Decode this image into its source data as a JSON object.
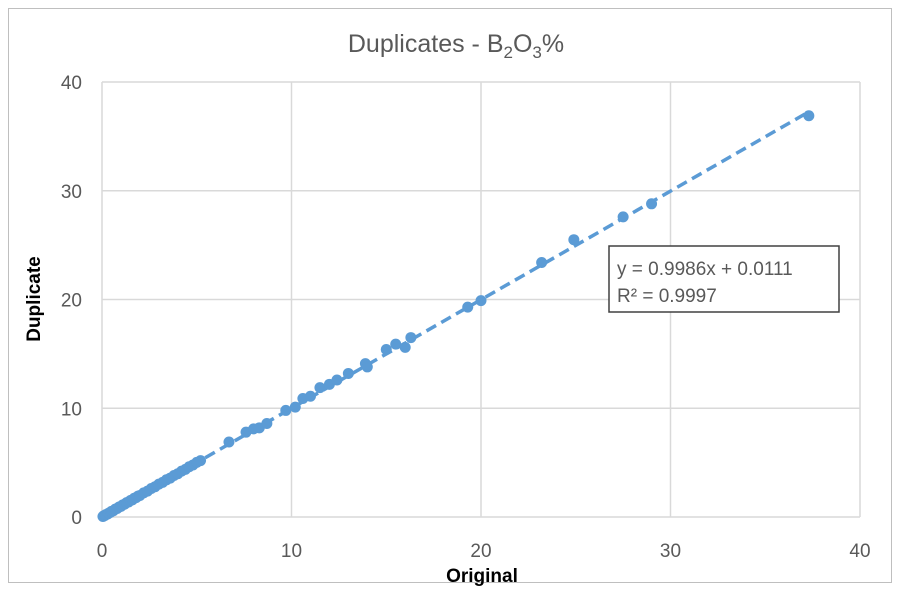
{
  "chart_data": {
    "type": "scatter",
    "title": "Duplicates - B2O3%",
    "title_parts": {
      "prefix": "Duplicates - B",
      "sub1": "2",
      "mid": "O",
      "sub2": "3",
      "suffix": "%"
    },
    "xlabel": "Original",
    "ylabel": "Duplicate",
    "xlim": [
      0,
      40
    ],
    "ylim": [
      0,
      40
    ],
    "xticks": [
      0,
      10,
      20,
      30,
      40
    ],
    "yticks": [
      0,
      10,
      20,
      30,
      40
    ],
    "x_tick_labels": [
      "0",
      "10",
      "20",
      "30",
      "40"
    ],
    "y_tick_labels": [
      "0",
      "10",
      "20",
      "30",
      "40"
    ],
    "grid": true,
    "marker_color": "#5b9bd5",
    "trendline": {
      "type": "linear",
      "slope": 0.9986,
      "intercept": 0.0111,
      "style": "dashed",
      "x_range": [
        0,
        37.3
      ],
      "equation_text": "y = 0.9986x + 0.0111",
      "r2_text": "R² = 0.9997"
    },
    "points": [
      [
        0.05,
        0.05
      ],
      [
        0.1,
        0.12
      ],
      [
        0.15,
        0.14
      ],
      [
        0.2,
        0.22
      ],
      [
        0.3,
        0.28
      ],
      [
        0.35,
        0.36
      ],
      [
        0.45,
        0.44
      ],
      [
        0.5,
        0.52
      ],
      [
        0.6,
        0.58
      ],
      [
        0.7,
        0.72
      ],
      [
        0.8,
        0.78
      ],
      [
        0.9,
        0.92
      ],
      [
        1.0,
        0.98
      ],
      [
        1.1,
        1.12
      ],
      [
        1.2,
        1.18
      ],
      [
        1.3,
        1.32
      ],
      [
        1.4,
        1.38
      ],
      [
        1.5,
        1.52
      ],
      [
        1.6,
        1.58
      ],
      [
        1.7,
        1.72
      ],
      [
        1.8,
        1.78
      ],
      [
        1.9,
        1.92
      ],
      [
        2.0,
        1.98
      ],
      [
        2.2,
        2.22
      ],
      [
        2.4,
        2.38
      ],
      [
        2.6,
        2.62
      ],
      [
        2.8,
        2.78
      ],
      [
        3.0,
        3.02
      ],
      [
        3.2,
        3.18
      ],
      [
        3.4,
        3.42
      ],
      [
        3.6,
        3.58
      ],
      [
        3.8,
        3.82
      ],
      [
        4.0,
        3.98
      ],
      [
        4.2,
        4.22
      ],
      [
        4.4,
        4.38
      ],
      [
        4.6,
        4.62
      ],
      [
        4.8,
        4.78
      ],
      [
        5.0,
        5.02
      ],
      [
        5.2,
        5.18
      ],
      [
        6.7,
        6.9
      ],
      [
        7.6,
        7.8
      ],
      [
        8.0,
        8.1
      ],
      [
        8.3,
        8.2
      ],
      [
        8.7,
        8.6
      ],
      [
        9.7,
        9.8
      ],
      [
        10.2,
        10.1
      ],
      [
        10.6,
        10.9
      ],
      [
        11.0,
        11.1
      ],
      [
        11.5,
        11.9
      ],
      [
        12.0,
        12.2
      ],
      [
        12.4,
        12.6
      ],
      [
        13.0,
        13.2
      ],
      [
        13.9,
        14.1
      ],
      [
        14.0,
        13.8
      ],
      [
        15.0,
        15.4
      ],
      [
        15.5,
        15.9
      ],
      [
        16.0,
        15.6
      ],
      [
        16.3,
        16.5
      ],
      [
        19.3,
        19.3
      ],
      [
        20.0,
        19.9
      ],
      [
        23.2,
        23.4
      ],
      [
        24.9,
        25.5
      ],
      [
        27.5,
        27.6
      ],
      [
        29.0,
        28.8
      ],
      [
        37.3,
        36.9
      ]
    ]
  }
}
